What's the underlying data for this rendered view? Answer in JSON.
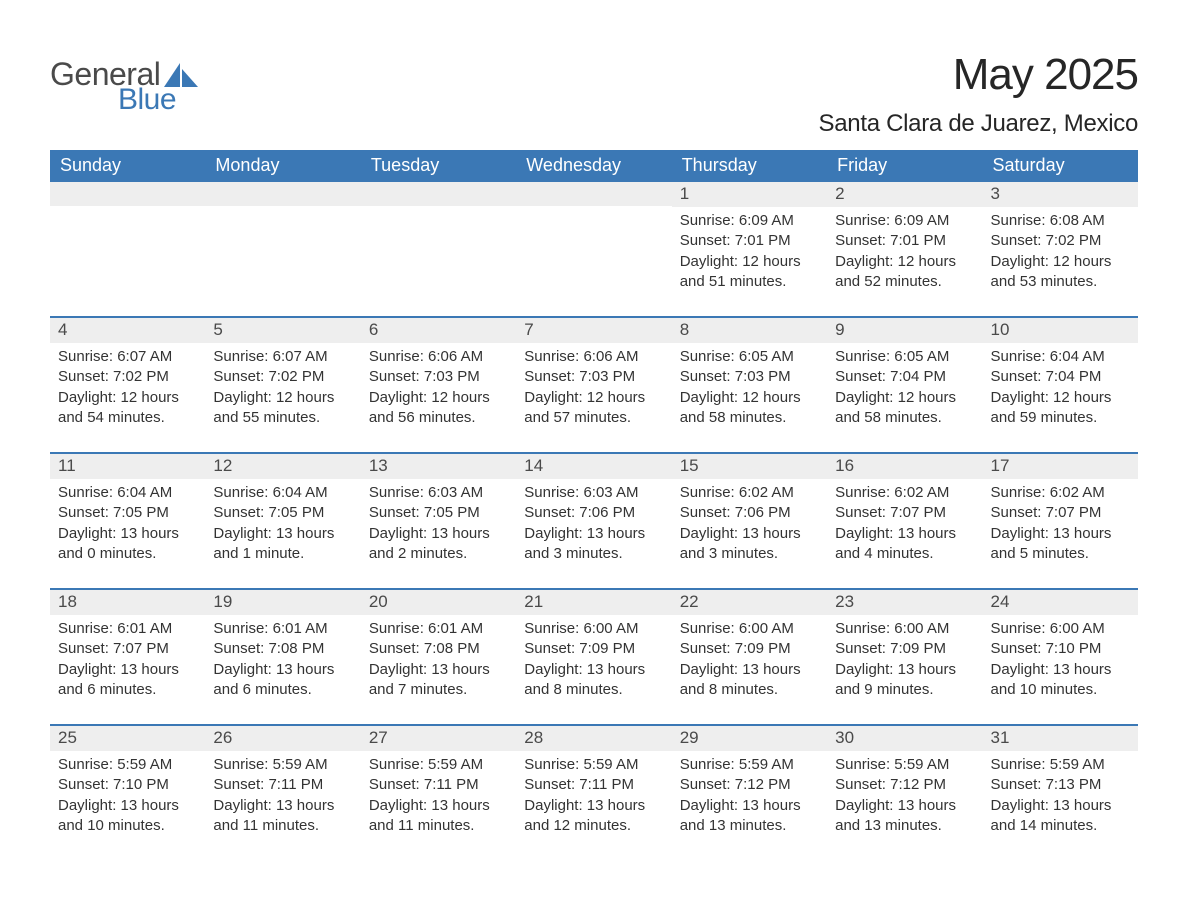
{
  "brand": {
    "name_part1": "General",
    "name_part2": "Blue"
  },
  "colors": {
    "brand_blue": "#3b78b5",
    "header_blue": "#3b78b5",
    "text_dark": "#262626",
    "body_text": "#333333",
    "daynum_bg": "#eeeeee",
    "daynum_text": "#4a4a4a",
    "page_bg": "#ffffff",
    "border_blue": "#3b78b5",
    "header_text": "#ffffff"
  },
  "typography": {
    "title_fontsize": 44,
    "location_fontsize": 24,
    "dayheader_fontsize": 18,
    "daynum_fontsize": 17,
    "body_fontsize": 15
  },
  "calendar": {
    "type": "table",
    "month_title": "May 2025",
    "location": "Santa Clara de Juarez, Mexico",
    "day_headers": [
      "Sunday",
      "Monday",
      "Tuesday",
      "Wednesday",
      "Thursday",
      "Friday",
      "Saturday"
    ],
    "weeks": [
      [
        {
          "n": "",
          "sr": "",
          "ss": "",
          "dl": ""
        },
        {
          "n": "",
          "sr": "",
          "ss": "",
          "dl": ""
        },
        {
          "n": "",
          "sr": "",
          "ss": "",
          "dl": ""
        },
        {
          "n": "",
          "sr": "",
          "ss": "",
          "dl": ""
        },
        {
          "n": "1",
          "sr": "Sunrise: 6:09 AM",
          "ss": "Sunset: 7:01 PM",
          "dl": "Daylight: 12 hours and 51 minutes."
        },
        {
          "n": "2",
          "sr": "Sunrise: 6:09 AM",
          "ss": "Sunset: 7:01 PM",
          "dl": "Daylight: 12 hours and 52 minutes."
        },
        {
          "n": "3",
          "sr": "Sunrise: 6:08 AM",
          "ss": "Sunset: 7:02 PM",
          "dl": "Daylight: 12 hours and 53 minutes."
        }
      ],
      [
        {
          "n": "4",
          "sr": "Sunrise: 6:07 AM",
          "ss": "Sunset: 7:02 PM",
          "dl": "Daylight: 12 hours and 54 minutes."
        },
        {
          "n": "5",
          "sr": "Sunrise: 6:07 AM",
          "ss": "Sunset: 7:02 PM",
          "dl": "Daylight: 12 hours and 55 minutes."
        },
        {
          "n": "6",
          "sr": "Sunrise: 6:06 AM",
          "ss": "Sunset: 7:03 PM",
          "dl": "Daylight: 12 hours and 56 minutes."
        },
        {
          "n": "7",
          "sr": "Sunrise: 6:06 AM",
          "ss": "Sunset: 7:03 PM",
          "dl": "Daylight: 12 hours and 57 minutes."
        },
        {
          "n": "8",
          "sr": "Sunrise: 6:05 AM",
          "ss": "Sunset: 7:03 PM",
          "dl": "Daylight: 12 hours and 58 minutes."
        },
        {
          "n": "9",
          "sr": "Sunrise: 6:05 AM",
          "ss": "Sunset: 7:04 PM",
          "dl": "Daylight: 12 hours and 58 minutes."
        },
        {
          "n": "10",
          "sr": "Sunrise: 6:04 AM",
          "ss": "Sunset: 7:04 PM",
          "dl": "Daylight: 12 hours and 59 minutes."
        }
      ],
      [
        {
          "n": "11",
          "sr": "Sunrise: 6:04 AM",
          "ss": "Sunset: 7:05 PM",
          "dl": "Daylight: 13 hours and 0 minutes."
        },
        {
          "n": "12",
          "sr": "Sunrise: 6:04 AM",
          "ss": "Sunset: 7:05 PM",
          "dl": "Daylight: 13 hours and 1 minute."
        },
        {
          "n": "13",
          "sr": "Sunrise: 6:03 AM",
          "ss": "Sunset: 7:05 PM",
          "dl": "Daylight: 13 hours and 2 minutes."
        },
        {
          "n": "14",
          "sr": "Sunrise: 6:03 AM",
          "ss": "Sunset: 7:06 PM",
          "dl": "Daylight: 13 hours and 3 minutes."
        },
        {
          "n": "15",
          "sr": "Sunrise: 6:02 AM",
          "ss": "Sunset: 7:06 PM",
          "dl": "Daylight: 13 hours and 3 minutes."
        },
        {
          "n": "16",
          "sr": "Sunrise: 6:02 AM",
          "ss": "Sunset: 7:07 PM",
          "dl": "Daylight: 13 hours and 4 minutes."
        },
        {
          "n": "17",
          "sr": "Sunrise: 6:02 AM",
          "ss": "Sunset: 7:07 PM",
          "dl": "Daylight: 13 hours and 5 minutes."
        }
      ],
      [
        {
          "n": "18",
          "sr": "Sunrise: 6:01 AM",
          "ss": "Sunset: 7:07 PM",
          "dl": "Daylight: 13 hours and 6 minutes."
        },
        {
          "n": "19",
          "sr": "Sunrise: 6:01 AM",
          "ss": "Sunset: 7:08 PM",
          "dl": "Daylight: 13 hours and 6 minutes."
        },
        {
          "n": "20",
          "sr": "Sunrise: 6:01 AM",
          "ss": "Sunset: 7:08 PM",
          "dl": "Daylight: 13 hours and 7 minutes."
        },
        {
          "n": "21",
          "sr": "Sunrise: 6:00 AM",
          "ss": "Sunset: 7:09 PM",
          "dl": "Daylight: 13 hours and 8 minutes."
        },
        {
          "n": "22",
          "sr": "Sunrise: 6:00 AM",
          "ss": "Sunset: 7:09 PM",
          "dl": "Daylight: 13 hours and 8 minutes."
        },
        {
          "n": "23",
          "sr": "Sunrise: 6:00 AM",
          "ss": "Sunset: 7:09 PM",
          "dl": "Daylight: 13 hours and 9 minutes."
        },
        {
          "n": "24",
          "sr": "Sunrise: 6:00 AM",
          "ss": "Sunset: 7:10 PM",
          "dl": "Daylight: 13 hours and 10 minutes."
        }
      ],
      [
        {
          "n": "25",
          "sr": "Sunrise: 5:59 AM",
          "ss": "Sunset: 7:10 PM",
          "dl": "Daylight: 13 hours and 10 minutes."
        },
        {
          "n": "26",
          "sr": "Sunrise: 5:59 AM",
          "ss": "Sunset: 7:11 PM",
          "dl": "Daylight: 13 hours and 11 minutes."
        },
        {
          "n": "27",
          "sr": "Sunrise: 5:59 AM",
          "ss": "Sunset: 7:11 PM",
          "dl": "Daylight: 13 hours and 11 minutes."
        },
        {
          "n": "28",
          "sr": "Sunrise: 5:59 AM",
          "ss": "Sunset: 7:11 PM",
          "dl": "Daylight: 13 hours and 12 minutes."
        },
        {
          "n": "29",
          "sr": "Sunrise: 5:59 AM",
          "ss": "Sunset: 7:12 PM",
          "dl": "Daylight: 13 hours and 13 minutes."
        },
        {
          "n": "30",
          "sr": "Sunrise: 5:59 AM",
          "ss": "Sunset: 7:12 PM",
          "dl": "Daylight: 13 hours and 13 minutes."
        },
        {
          "n": "31",
          "sr": "Sunrise: 5:59 AM",
          "ss": "Sunset: 7:13 PM",
          "dl": "Daylight: 13 hours and 14 minutes."
        }
      ]
    ]
  }
}
